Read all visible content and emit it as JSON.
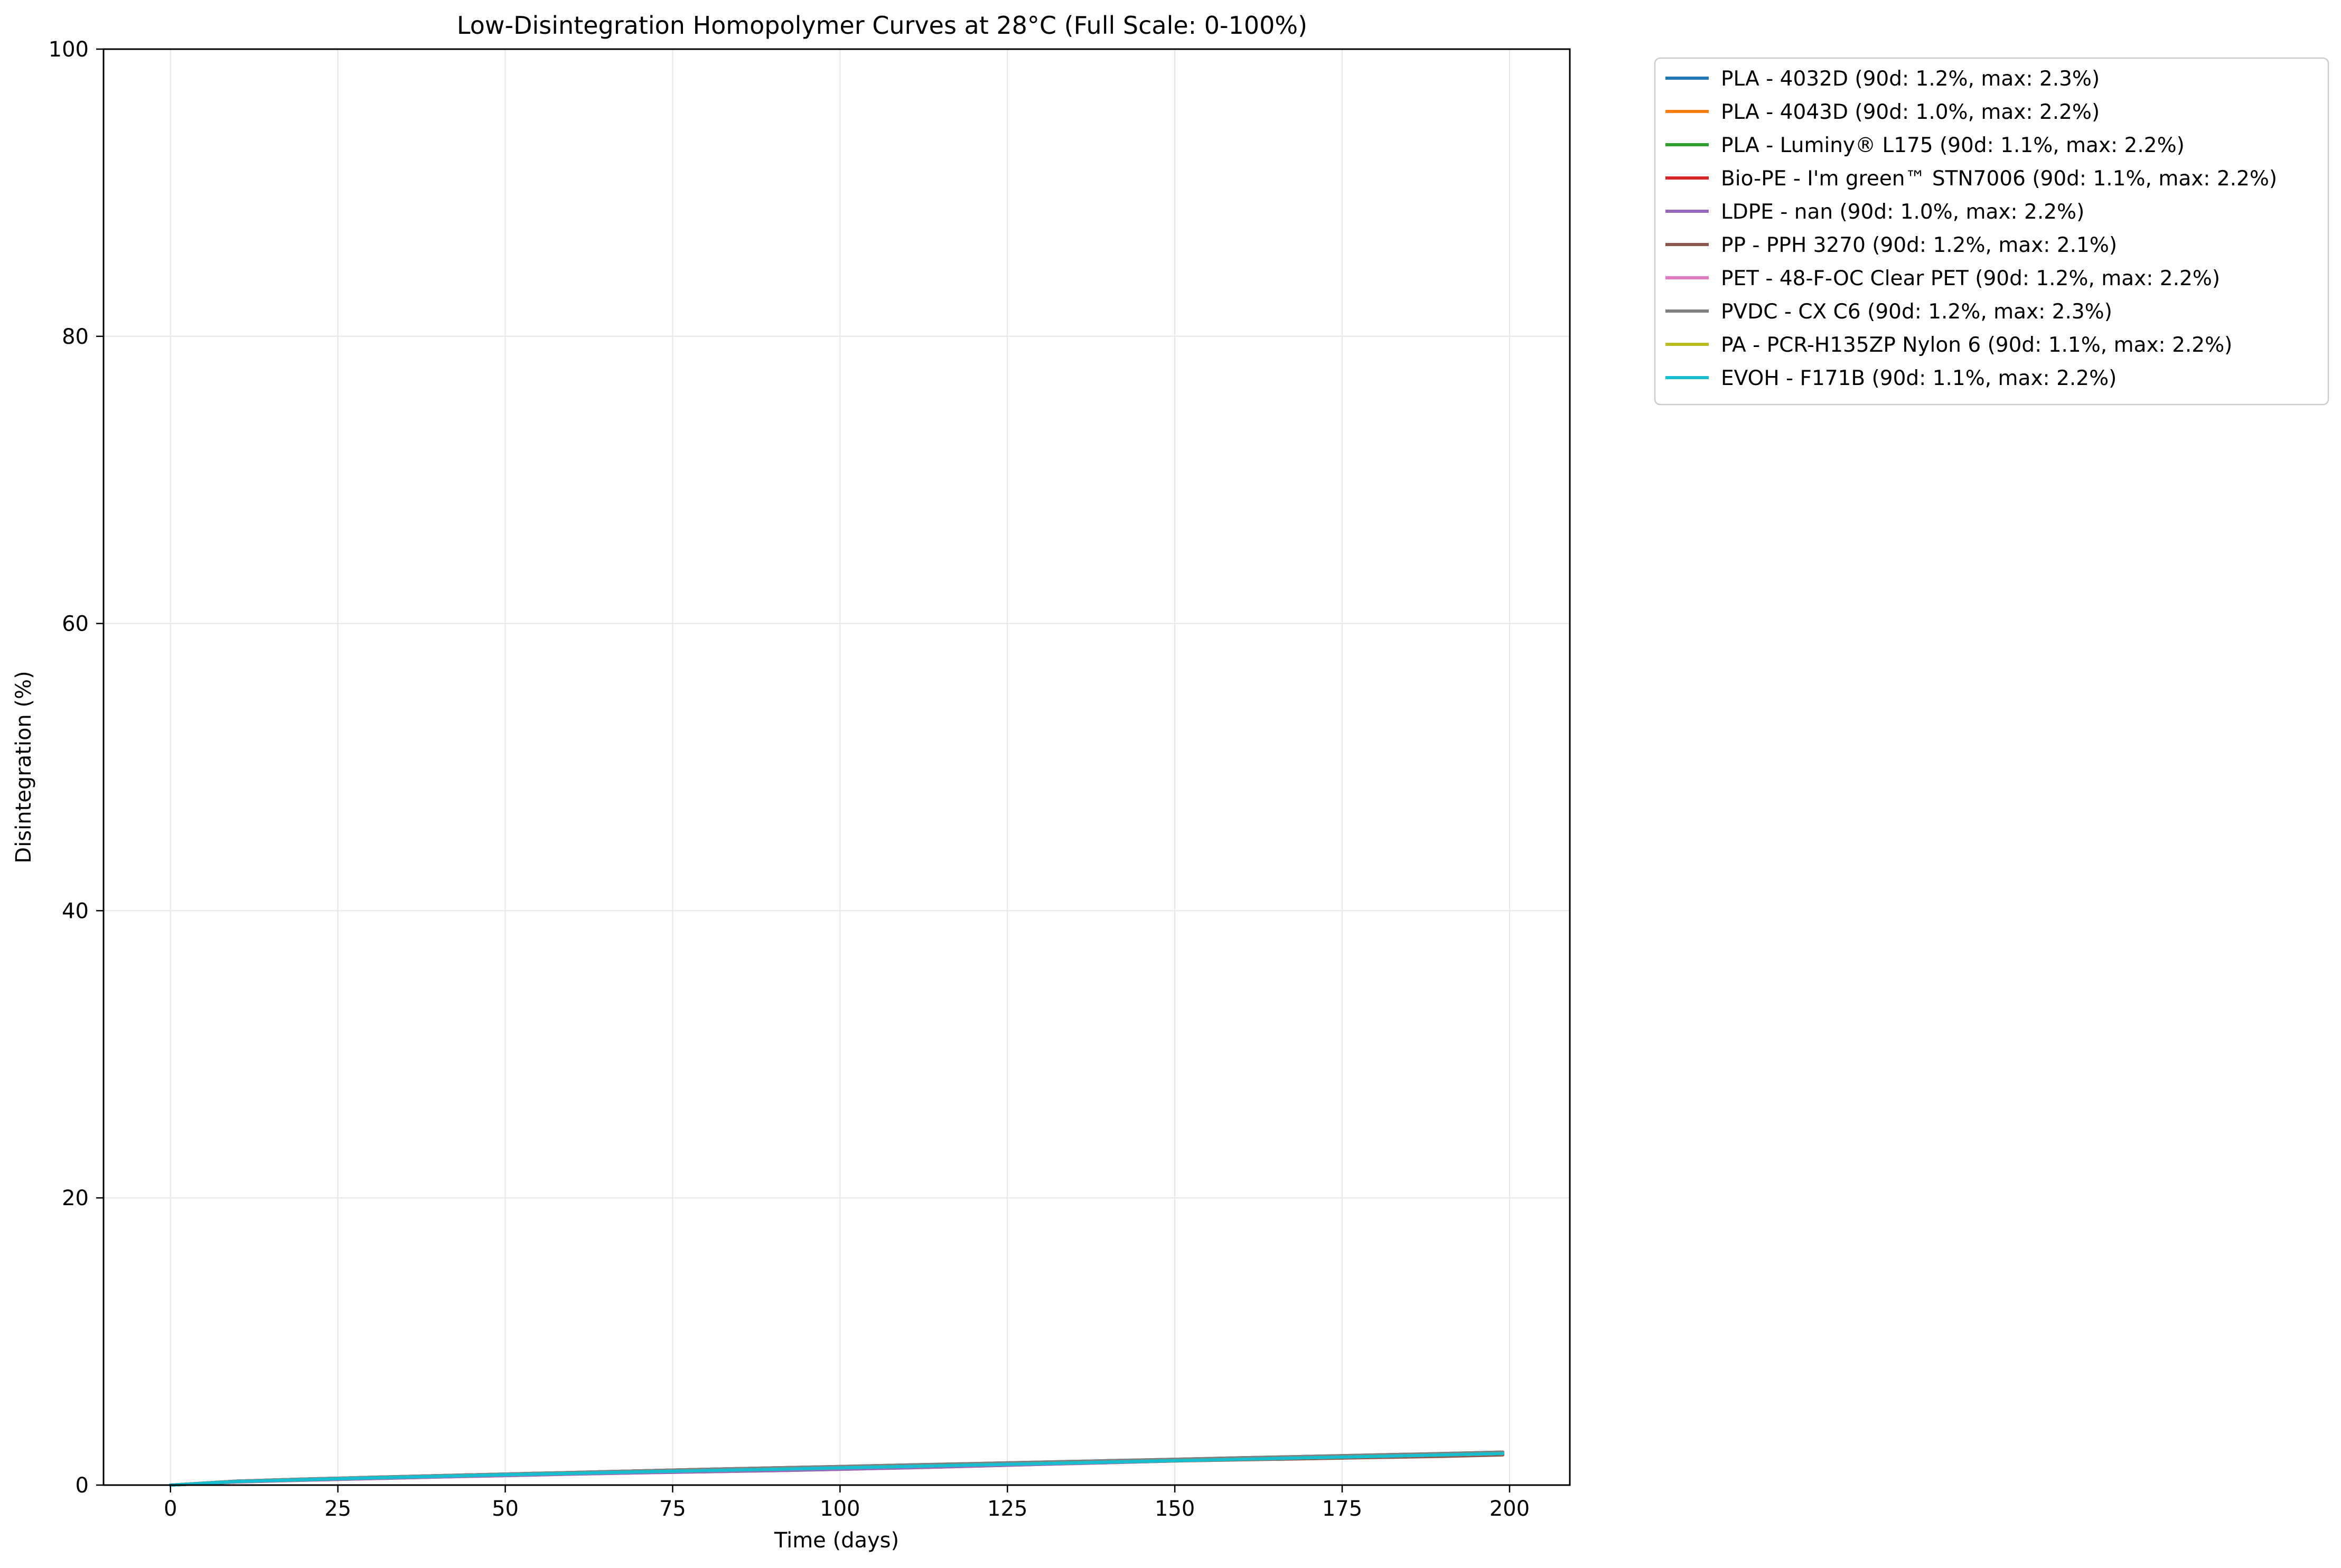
{
  "chart_data": {
    "type": "line",
    "title": "Low-Disintegration Homopolymer Curves at 28°C (Full Scale: 0-100%)",
    "xlabel": "Time (days)",
    "ylabel": "Disintegration (%)",
    "xlim": [
      -10,
      209
    ],
    "ylim": [
      0,
      100
    ],
    "xticks": [
      0,
      25,
      50,
      75,
      100,
      125,
      150,
      175,
      200
    ],
    "yticks": [
      0,
      20,
      40,
      60,
      80,
      100
    ],
    "grid": true,
    "legend_position": "outside-upper-right",
    "x": [
      0,
      10,
      20,
      30,
      40,
      50,
      60,
      70,
      80,
      90,
      100,
      110,
      120,
      130,
      140,
      150,
      160,
      170,
      180,
      190,
      199
    ],
    "series": [
      {
        "name": "PLA - 4032D  (90d: 1.2%, max: 2.3%)",
        "color": "#1f77b4",
        "values": [
          0.0,
          0.28,
          0.42,
          0.54,
          0.66,
          0.77,
          0.88,
          0.99,
          1.1,
          1.2,
          1.3,
          1.4,
          1.5,
          1.6,
          1.7,
          1.8,
          1.9,
          2.0,
          2.1,
          2.2,
          2.3
        ]
      },
      {
        "name": "PLA - 4043D  (90d: 1.0%, max: 2.2%)",
        "color": "#ff7f0e",
        "values": [
          0.0,
          0.22,
          0.34,
          0.45,
          0.56,
          0.66,
          0.76,
          0.85,
          0.93,
          1.0,
          1.1,
          1.2,
          1.32,
          1.44,
          1.56,
          1.68,
          1.8,
          1.92,
          2.02,
          2.12,
          2.2
        ]
      },
      {
        "name": "PLA - Luminy® L175 (90d: 1.1%, max: 2.2%)",
        "color": "#2ca02c",
        "values": [
          0.0,
          0.25,
          0.38,
          0.5,
          0.61,
          0.72,
          0.82,
          0.92,
          1.01,
          1.1,
          1.2,
          1.3,
          1.4,
          1.5,
          1.6,
          1.7,
          1.8,
          1.9,
          2.0,
          2.1,
          2.2
        ]
      },
      {
        "name": "Bio-PE - I'm green™ STN7006 (90d: 1.1%, max: 2.2%)",
        "color": "#d62728",
        "values": [
          0.0,
          0.25,
          0.38,
          0.5,
          0.61,
          0.72,
          0.82,
          0.92,
          1.01,
          1.1,
          1.2,
          1.3,
          1.4,
          1.5,
          1.6,
          1.7,
          1.8,
          1.9,
          2.0,
          2.1,
          2.2
        ]
      },
      {
        "name": "LDPE - nan (90d: 1.0%, max: 2.2%)",
        "color": "#9467bd",
        "values": [
          0.0,
          0.22,
          0.34,
          0.45,
          0.56,
          0.66,
          0.76,
          0.85,
          0.93,
          1.0,
          1.1,
          1.2,
          1.32,
          1.44,
          1.56,
          1.68,
          1.8,
          1.92,
          2.02,
          2.12,
          2.2
        ]
      },
      {
        "name": "PP - PPH 3270 (90d: 1.2%, max: 2.1%)",
        "color": "#8c564b",
        "values": [
          0.0,
          0.28,
          0.42,
          0.54,
          0.66,
          0.77,
          0.88,
          0.99,
          1.1,
          1.2,
          1.28,
          1.36,
          1.44,
          1.52,
          1.6,
          1.68,
          1.76,
          1.84,
          1.92,
          2.0,
          2.1
        ]
      },
      {
        "name": "PET - 48-F-OC Clear PET (90d: 1.2%, max: 2.2%)",
        "color": "#e377c2",
        "values": [
          0.0,
          0.28,
          0.42,
          0.54,
          0.66,
          0.77,
          0.88,
          0.99,
          1.1,
          1.2,
          1.29,
          1.38,
          1.47,
          1.56,
          1.65,
          1.74,
          1.83,
          1.92,
          2.01,
          2.1,
          2.2
        ]
      },
      {
        "name": "PVDC - CX C6 (90d: 1.2%, max: 2.3%)",
        "color": "#7f7f7f",
        "values": [
          0.0,
          0.28,
          0.42,
          0.54,
          0.66,
          0.77,
          0.88,
          0.99,
          1.1,
          1.2,
          1.3,
          1.4,
          1.5,
          1.6,
          1.7,
          1.8,
          1.9,
          2.0,
          2.1,
          2.2,
          2.3
        ]
      },
      {
        "name": "PA - PCR-H135ZP Nylon 6 (90d: 1.1%, max: 2.2%)",
        "color": "#bcbd22",
        "values": [
          0.0,
          0.25,
          0.38,
          0.5,
          0.61,
          0.72,
          0.82,
          0.92,
          1.01,
          1.1,
          1.2,
          1.3,
          1.4,
          1.5,
          1.6,
          1.7,
          1.8,
          1.9,
          2.0,
          2.1,
          2.2
        ]
      },
      {
        "name": "EVOH - F171B (90d: 1.1%, max: 2.2%)",
        "color": "#17becf",
        "values": [
          0.0,
          0.25,
          0.38,
          0.5,
          0.61,
          0.72,
          0.82,
          0.92,
          1.01,
          1.1,
          1.2,
          1.3,
          1.4,
          1.5,
          1.6,
          1.7,
          1.8,
          1.9,
          2.0,
          2.1,
          2.2
        ]
      }
    ]
  }
}
